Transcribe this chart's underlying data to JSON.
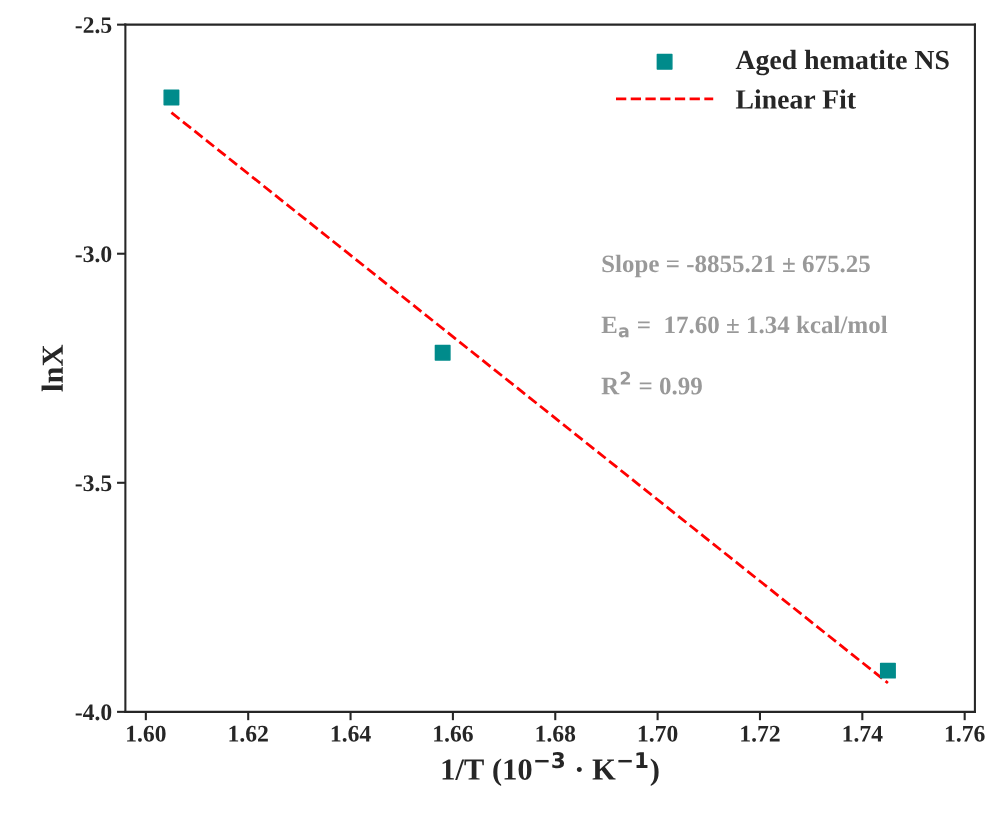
{
  "chart_data": {
    "type": "scatter",
    "xlabel": "1/T (10$^{−3}$ · K$^{−1}$)",
    "ylabel": "lnX",
    "xlim": [
      1.596,
      1.762
    ],
    "xticks": [
      {
        "value": 1.6,
        "label": "1.60"
      },
      1.62,
      1.64,
      1.66,
      1.68,
      {
        "value": 1.7,
        "label": "1.70"
      },
      1.72,
      1.74,
      1.76
    ],
    "ylim": [
      -4.0,
      -2.5
    ],
    "yticks": [
      {
        "value": -4.0,
        "label": "-4.0"
      },
      {
        "value": -3.5,
        "label": "-3.5"
      },
      {
        "value": -3.0,
        "label": "-3.0"
      },
      {
        "value": -2.5,
        "label": "-2.5"
      }
    ],
    "series": [
      {
        "name": "Aged hematite NS",
        "color": "#008b8b",
        "marker": "square",
        "x": [
          1.605,
          1.658,
          1.745
        ],
        "values": [
          -2.659,
          -3.216,
          -3.91
        ]
      },
      {
        "name": "Linear Fit",
        "type": "line",
        "color": "#ff0000",
        "line_style": "dashed",
        "marker": "none",
        "x": [
          1.605,
          1.745
        ],
        "values": [
          -2.692,
          -3.937
        ]
      }
    ],
    "annotations": [
      "Slope = -8855.21 ± 675.25",
      "E$_{a}$ =  17.60 ± 1.34 kcal/mol",
      "R$^{2}$ = 0.99"
    ],
    "legend": "top right",
    "grid": false
  }
}
